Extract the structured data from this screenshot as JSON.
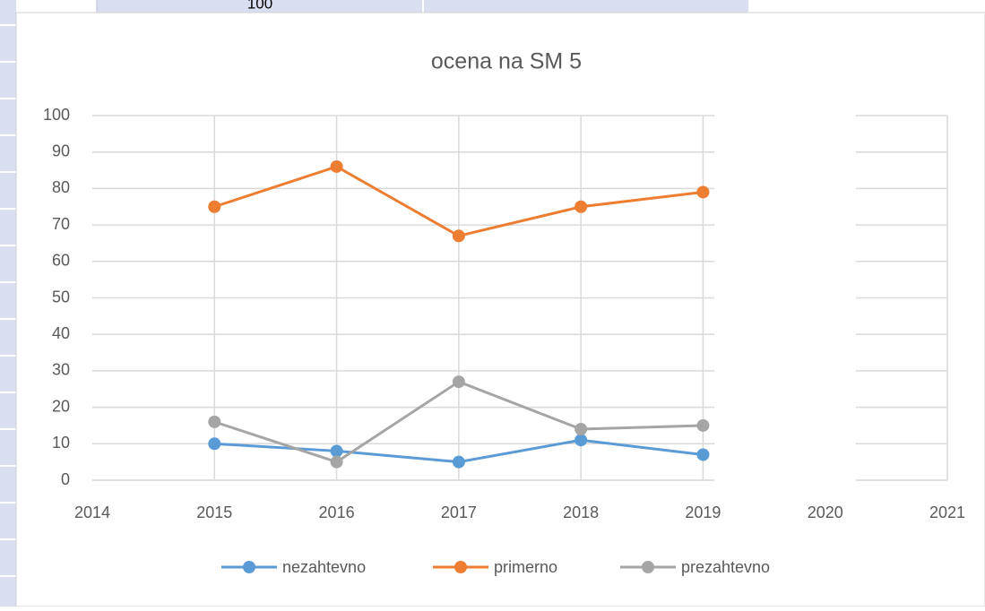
{
  "sheet": {
    "cell_text": "100"
  },
  "chart_data": {
    "type": "line",
    "title": "ocena na SM 5",
    "x": [
      2015,
      2016,
      2017,
      2018,
      2019
    ],
    "xlim": [
      2014,
      2021
    ],
    "xticks": [
      2014,
      2015,
      2016,
      2017,
      2018,
      2019,
      2020,
      2021
    ],
    "ylim": [
      0,
      100
    ],
    "yticks": [
      0,
      10,
      20,
      30,
      40,
      50,
      60,
      70,
      80,
      90,
      100
    ],
    "grid": true,
    "legend": "bottom",
    "series": [
      {
        "name": "nezahtevno",
        "color": "#5b9bd5",
        "values": [
          10,
          8,
          5,
          11,
          7
        ]
      },
      {
        "name": "primerno",
        "color": "#ed7d31",
        "values": [
          75,
          86,
          67,
          75,
          79
        ]
      },
      {
        "name": "prezahtevno",
        "color": "#a5a5a5",
        "values": [
          16,
          5,
          27,
          14,
          15
        ]
      }
    ]
  }
}
